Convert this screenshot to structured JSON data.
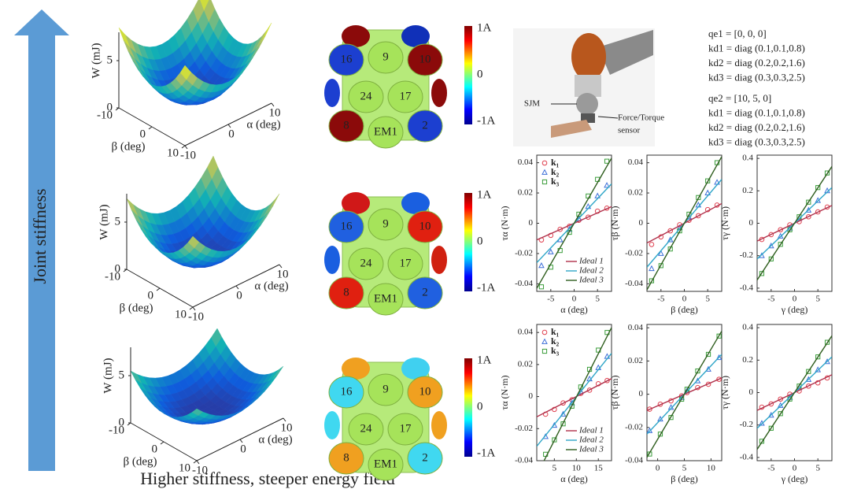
{
  "arrow_label": "Joint stiffness",
  "caption": "Higher stiffness, steeper energy field",
  "surfaces": [
    {
      "zlabel": "W (mJ)",
      "xlabel": "α (deg)",
      "ylabel": "β (deg)",
      "zticks": [
        0,
        5
      ],
      "xticks": [
        -10,
        0,
        10
      ],
      "yticks": [
        -10,
        0,
        10
      ]
    },
    {
      "zlabel": "W (mJ)",
      "xlabel": "α (deg)",
      "ylabel": "β (deg)",
      "zticks": [
        0,
        5
      ],
      "xticks": [
        -10,
        0,
        10
      ],
      "yticks": [
        -10,
        0,
        10
      ]
    },
    {
      "zlabel": "W (mJ)",
      "xlabel": "α (deg)",
      "ylabel": "β (deg)",
      "zticks": [
        0,
        5
      ],
      "xticks": [
        -10,
        0,
        10
      ],
      "yticks": [
        -10,
        0,
        10
      ]
    }
  ],
  "magnets": [
    {
      "labels": [
        "16",
        "9",
        "10",
        "24",
        "17",
        "8",
        "EM1",
        "2"
      ],
      "colorbar": [
        "1A",
        "0",
        "-1A"
      ],
      "side_colors": [
        "#8b0a0a",
        "#1030b8",
        "#1c3fd0",
        "#8b0a0a",
        "#1c3fd0",
        "#8b0a0a",
        "#8b0a0a",
        "#1c3fd0"
      ]
    },
    {
      "labels": [
        "16",
        "9",
        "10",
        "24",
        "17",
        "8",
        "EM1",
        "2"
      ],
      "colorbar": [
        "1A",
        "0",
        "-1A"
      ],
      "side_colors": [
        "#d01818",
        "#1a5fe0",
        "#2060e0",
        "#e02010",
        "#1a5fe0",
        "#d02010",
        "#e02010",
        "#2060e0"
      ]
    },
    {
      "labels": [
        "16",
        "9",
        "10",
        "24",
        "17",
        "8",
        "EM1",
        "2"
      ],
      "colorbar": [
        "1A",
        "0",
        "-1A"
      ],
      "side_colors": [
        "#f0a020",
        "#40d0f0",
        "#40d8f0",
        "#f0a020",
        "#40d8f0",
        "#f0a020",
        "#f0a020",
        "#40d8f0"
      ]
    }
  ],
  "photo": {
    "labels": [
      "SJM",
      "Force/Torque",
      "sensor"
    ]
  },
  "parameters": [
    "qe1 = [0, 0, 0]",
    "kd1 = diag (0.1,0.1,0.8)",
    "kd2 = diag (0.2,0.2,1.6)",
    "kd3 = diag (0.3,0.3,2.5)",
    "qe2 = [10, 5, 0]",
    "kd1 = diag (0.1,0.1,0.8)",
    "kd2 = diag (0.2,0.2,1.6)",
    "kd3 = diag (0.3,0.3,2.5)"
  ],
  "chart_data": [
    {
      "type": "scatter",
      "xlabel": "α (deg)",
      "ylabel": "τα (N·m)",
      "xlim": [
        -8,
        8
      ],
      "xticks": [
        -5,
        0,
        5
      ],
      "ylim": [
        -0.045,
        0.045
      ],
      "yticks": [
        -0.04,
        -0.02,
        0,
        0.02,
        0.04
      ],
      "series": [
        {
          "name": "k₁",
          "color": "#e0404f",
          "marker": "circle",
          "x": [
            -7,
            -5,
            -3,
            -1,
            1,
            3,
            5,
            7
          ],
          "values": [
            -0.011,
            -0.008,
            -0.004,
            -0.002,
            0.002,
            0.004,
            0.008,
            0.01
          ]
        },
        {
          "name": "k₂",
          "color": "#3d6fd8",
          "marker": "triangle",
          "x": [
            -7,
            -5,
            -3,
            -1,
            1,
            3,
            5,
            7
          ],
          "values": [
            -0.028,
            -0.019,
            -0.011,
            -0.004,
            0.003,
            0.011,
            0.018,
            0.025
          ]
        },
        {
          "name": "k₃",
          "color": "#3a9d3a",
          "marker": "square",
          "x": [
            -7,
            -5,
            -3,
            -1,
            1,
            3,
            5,
            7
          ],
          "values": [
            -0.042,
            -0.029,
            -0.018,
            -0.006,
            0.006,
            0.018,
            0.029,
            0.041
          ]
        },
        {
          "name": "Ideal 1",
          "color": "#b0304a",
          "style": "line",
          "x": [
            -8,
            8
          ],
          "values": [
            -0.011,
            0.011
          ]
        },
        {
          "name": "Ideal 2",
          "color": "#2fa6c8",
          "style": "line",
          "x": [
            -8,
            8
          ],
          "values": [
            -0.026,
            0.026
          ]
        },
        {
          "name": "Ideal 3",
          "color": "#2f5e1e",
          "style": "line",
          "x": [
            -8,
            8
          ],
          "values": [
            -0.043,
            0.043
          ]
        }
      ]
    },
    {
      "type": "scatter",
      "xlabel": "β (deg)",
      "ylabel": "τβ (N·m)",
      "xlim": [
        -8,
        8
      ],
      "xticks": [
        -5,
        0,
        5
      ],
      "ylim": [
        -0.045,
        0.045
      ],
      "yticks": [
        -0.04,
        -0.02,
        0,
        0.02,
        0.04
      ],
      "series": [
        {
          "color": "#e0404f",
          "marker": "circle",
          "x": [
            -7,
            -5,
            -3,
            -1,
            1,
            3,
            5,
            7
          ],
          "values": [
            -0.014,
            -0.009,
            -0.005,
            -0.001,
            0.002,
            0.005,
            0.009,
            0.012
          ]
        },
        {
          "color": "#3d6fd8",
          "marker": "triangle",
          "x": [
            -7,
            -5,
            -3,
            -1,
            1,
            3,
            5,
            7
          ],
          "values": [
            -0.03,
            -0.02,
            -0.011,
            -0.003,
            0.004,
            0.012,
            0.02,
            0.027
          ]
        },
        {
          "color": "#3a9d3a",
          "marker": "square",
          "x": [
            -7,
            -5,
            -3,
            -1,
            1,
            3,
            5,
            7
          ],
          "values": [
            -0.038,
            -0.028,
            -0.017,
            -0.005,
            0.006,
            0.017,
            0.028,
            0.04
          ]
        },
        {
          "color": "#b0304a",
          "style": "line",
          "x": [
            -8,
            8
          ],
          "values": [
            -0.013,
            0.013
          ]
        },
        {
          "color": "#2fa6c8",
          "style": "line",
          "x": [
            -8,
            8
          ],
          "values": [
            -0.029,
            0.029
          ]
        },
        {
          "color": "#2f5e1e",
          "style": "line",
          "x": [
            -8,
            8
          ],
          "values": [
            -0.044,
            0.044
          ]
        }
      ]
    },
    {
      "type": "scatter",
      "xlabel": "γ (deg)",
      "ylabel": "τγ (N·m)",
      "xlim": [
        -8,
        8
      ],
      "xticks": [
        -5,
        0,
        5
      ],
      "ylim": [
        -0.42,
        0.42
      ],
      "yticks": [
        -0.4,
        -0.2,
        0,
        0.2,
        0.4
      ],
      "series": [
        {
          "color": "#e0404f",
          "marker": "circle",
          "x": [
            -7,
            -5,
            -3,
            -1,
            1,
            3,
            5,
            7
          ],
          "values": [
            -0.1,
            -0.07,
            -0.04,
            -0.01,
            0.01,
            0.04,
            0.07,
            0.1
          ]
        },
        {
          "color": "#3d6fd8",
          "marker": "triangle",
          "x": [
            -7,
            -5,
            -3,
            -1,
            1,
            3,
            5,
            7
          ],
          "values": [
            -0.2,
            -0.14,
            -0.08,
            -0.03,
            0.03,
            0.08,
            0.14,
            0.2
          ]
        },
        {
          "color": "#3a9d3a",
          "marker": "square",
          "x": [
            -7,
            -5,
            -3,
            -1,
            1,
            3,
            5,
            7
          ],
          "values": [
            -0.31,
            -0.22,
            -0.13,
            -0.04,
            0.04,
            0.13,
            0.22,
            0.31
          ]
        },
        {
          "color": "#b0304a",
          "style": "line",
          "x": [
            -8,
            8
          ],
          "values": [
            -0.11,
            0.11
          ]
        },
        {
          "color": "#2fa6c8",
          "style": "line",
          "x": [
            -8,
            8
          ],
          "values": [
            -0.22,
            0.22
          ]
        },
        {
          "color": "#2f5e1e",
          "style": "line",
          "x": [
            -8,
            8
          ],
          "values": [
            -0.35,
            0.35
          ]
        }
      ]
    },
    {
      "type": "scatter",
      "xlabel": "α (deg)",
      "ylabel": "τα (N·m)",
      "xlim": [
        1,
        18
      ],
      "xticks": [
        5,
        10,
        15
      ],
      "ylim": [
        -0.04,
        0.045
      ],
      "yticks": [
        -0.04,
        -0.02,
        0,
        0.02,
        0.04
      ],
      "series": [
        {
          "name": "k₁",
          "color": "#e0404f",
          "marker": "circle",
          "x": [
            3,
            5,
            7,
            9,
            11,
            13,
            15,
            17
          ],
          "values": [
            -0.011,
            -0.008,
            -0.004,
            -0.002,
            0.002,
            0.004,
            0.008,
            0.01
          ]
        },
        {
          "name": "k₂",
          "color": "#3d6fd8",
          "marker": "triangle",
          "x": [
            3,
            5,
            7,
            9,
            11,
            13,
            15,
            17
          ],
          "values": [
            -0.025,
            -0.018,
            -0.011,
            -0.004,
            0.003,
            0.011,
            0.018,
            0.025
          ]
        },
        {
          "name": "k₃",
          "color": "#3a9d3a",
          "marker": "square",
          "x": [
            3,
            5,
            7,
            9,
            11,
            13,
            15,
            17
          ],
          "values": [
            -0.036,
            -0.027,
            -0.017,
            -0.006,
            0.006,
            0.017,
            0.029,
            0.04
          ]
        },
        {
          "name": "Ideal 1",
          "color": "#b0304a",
          "style": "line",
          "x": [
            1,
            18
          ],
          "values": [
            -0.0126,
            0.0112
          ]
        },
        {
          "name": "Ideal 2",
          "color": "#2fa6c8",
          "style": "line",
          "x": [
            1,
            18
          ],
          "values": [
            -0.031,
            0.027
          ]
        },
        {
          "name": "Ideal 3",
          "color": "#2f5e1e",
          "style": "line",
          "x": [
            1,
            18
          ],
          "values": [
            -0.049,
            0.043
          ]
        }
      ]
    },
    {
      "type": "scatter",
      "xlabel": "β (deg)",
      "ylabel": "τβ (N·m)",
      "xlim": [
        -2,
        12
      ],
      "xticks": [
        0,
        5,
        10
      ],
      "ylim": [
        -0.04,
        0.042
      ],
      "yticks": [
        -0.04,
        -0.02,
        0,
        0.02,
        0.04
      ],
      "series": [
        {
          "color": "#e0404f",
          "marker": "circle",
          "x": [
            -1.5,
            0.5,
            2.5,
            4.5,
            5.5,
            7.5,
            9.5,
            11.5
          ],
          "values": [
            -0.009,
            -0.006,
            -0.004,
            -0.001,
            0.001,
            0.004,
            0.006,
            0.009
          ]
        },
        {
          "color": "#3d6fd8",
          "marker": "triangle",
          "x": [
            -1.5,
            0.5,
            2.5,
            4.5,
            5.5,
            7.5,
            9.5,
            11.5
          ],
          "values": [
            -0.022,
            -0.015,
            -0.008,
            -0.002,
            0.002,
            0.008,
            0.015,
            0.022
          ]
        },
        {
          "color": "#3a9d3a",
          "marker": "square",
          "x": [
            -1.5,
            0.5,
            2.5,
            4.5,
            5.5,
            7.5,
            9.5,
            11.5
          ],
          "values": [
            -0.036,
            -0.024,
            -0.014,
            -0.003,
            0.003,
            0.014,
            0.024,
            0.035
          ]
        },
        {
          "color": "#b0304a",
          "style": "line",
          "x": [
            -2,
            12
          ],
          "values": [
            -0.0098,
            0.0098
          ]
        },
        {
          "color": "#2fa6c8",
          "style": "line",
          "x": [
            -2,
            12
          ],
          "values": [
            -0.024,
            0.024
          ]
        },
        {
          "color": "#2f5e1e",
          "style": "line",
          "x": [
            -2,
            12
          ],
          "values": [
            -0.038,
            0.038
          ]
        }
      ]
    },
    {
      "type": "scatter",
      "xlabel": "γ (deg)",
      "ylabel": "τγ (N·m)",
      "xlim": [
        -8,
        8
      ],
      "xticks": [
        -5,
        0,
        5
      ],
      "ylim": [
        -0.42,
        0.42
      ],
      "yticks": [
        -0.4,
        -0.2,
        0,
        0.2,
        0.4
      ],
      "series": [
        {
          "color": "#e0404f",
          "marker": "circle",
          "x": [
            -7,
            -5,
            -3,
            -1,
            1,
            3,
            5,
            7
          ],
          "values": [
            -0.09,
            -0.07,
            -0.04,
            -0.01,
            0.01,
            0.04,
            0.06,
            0.09
          ]
        },
        {
          "color": "#3d6fd8",
          "marker": "triangle",
          "x": [
            -7,
            -5,
            -3,
            -1,
            1,
            3,
            5,
            7
          ],
          "values": [
            -0.19,
            -0.14,
            -0.08,
            -0.03,
            0.03,
            0.08,
            0.14,
            0.19
          ]
        },
        {
          "color": "#3a9d3a",
          "marker": "square",
          "x": [
            -7,
            -5,
            -3,
            -1,
            1,
            3,
            5,
            7
          ],
          "values": [
            -0.3,
            -0.22,
            -0.13,
            -0.04,
            0.04,
            0.13,
            0.22,
            0.31
          ]
        },
        {
          "color": "#b0304a",
          "style": "line",
          "x": [
            -8,
            8
          ],
          "values": [
            -0.11,
            0.11
          ]
        },
        {
          "color": "#2fa6c8",
          "style": "line",
          "x": [
            -8,
            8
          ],
          "values": [
            -0.22,
            0.22
          ]
        },
        {
          "color": "#2f5e1e",
          "style": "line",
          "x": [
            -8,
            8
          ],
          "values": [
            -0.35,
            0.35
          ]
        }
      ]
    }
  ]
}
